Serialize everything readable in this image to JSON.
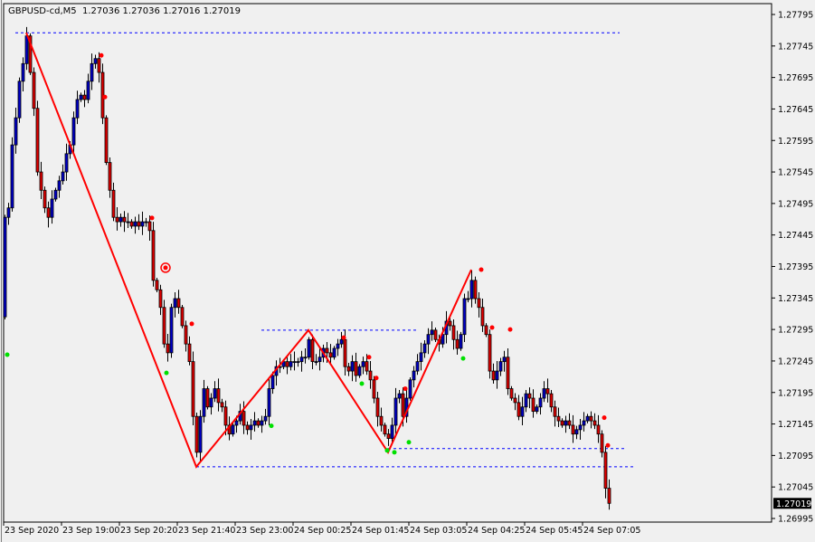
{
  "header": {
    "symbol": "GBPUSD-cd,M5",
    "ohlc": "1.27036 1.27036 1.27016 1.27019"
  },
  "colors": {
    "background": "#f0f0f0",
    "bull_body": "#0000c8",
    "bear_body": "#e00000",
    "wick": "#000000",
    "zigzag": "#ff0000",
    "level_line": "#0000ff",
    "signal_sell": "#ff0000",
    "signal_buy": "#00e000",
    "price_tag_bg": "#000000",
    "price_tag_fg": "#ffffff"
  },
  "chart_data": {
    "type": "candlestick",
    "symbol": "GBPUSD-cd",
    "timeframe": "M5",
    "ylim": [
      1.26995,
      1.27795
    ],
    "yticks": [
      "1.27795",
      "1.27745",
      "1.27695",
      "1.27645",
      "1.27595",
      "1.27545",
      "1.27495",
      "1.27445",
      "1.27395",
      "1.27345",
      "1.27295",
      "1.27245",
      "1.27195",
      "1.27145",
      "1.27095",
      "1.27045",
      "1.26995"
    ],
    "xticks": [
      {
        "bar": 0,
        "label": "23 Sep 2020"
      },
      {
        "bar": 16,
        "label": "23 Sep 19:00"
      },
      {
        "bar": 32,
        "label": "23 Sep 20:20"
      },
      {
        "bar": 48,
        "label": "23 Sep 21:40"
      },
      {
        "bar": 64,
        "label": "23 Sep 23:00"
      },
      {
        "bar": 80,
        "label": "24 Sep 00:25"
      },
      {
        "bar": 96,
        "label": "24 Sep 01:45"
      },
      {
        "bar": 112,
        "label": "24 Sep 03:05"
      },
      {
        "bar": 128,
        "label": "24 Sep 04:25"
      },
      {
        "bar": 144,
        "label": "24 Sep 05:45"
      },
      {
        "bar": 160,
        "label": "24 Sep 07:05"
      }
    ],
    "first_open": 1.27315,
    "closes": [
      1.27473,
      1.27488,
      1.27588,
      1.27631,
      1.27689,
      1.27717,
      1.27761,
      1.27703,
      1.27646,
      1.27545,
      1.27516,
      1.27488,
      1.27473,
      1.27502,
      1.27516,
      1.27531,
      1.27545,
      1.27574,
      1.27588,
      1.27631,
      1.2766,
      1.27667,
      1.2766,
      1.27689,
      1.27717,
      1.27725,
      1.27703,
      1.27631,
      1.2756,
      1.27516,
      1.27473,
      1.27466,
      1.27473,
      1.27466,
      1.27466,
      1.27459,
      1.27466,
      1.27459,
      1.27466,
      1.27466,
      1.27452,
      1.27373,
      1.27358,
      1.2733,
      1.27272,
      1.27258,
      1.2733,
      1.27344,
      1.2733,
      1.27301,
      1.27272,
      1.27244,
      1.27157,
      1.271,
      1.27157,
      1.27201,
      1.27172,
      1.27186,
      1.27201,
      1.27179,
      1.27172,
      1.27143,
      1.27129,
      1.27143,
      1.2715,
      1.27165,
      1.27143,
      1.27136,
      1.27143,
      1.2715,
      1.27143,
      1.2715,
      1.27157,
      1.27201,
      1.27222,
      1.27236,
      1.27236,
      1.27244,
      1.27236,
      1.27244,
      1.27244,
      1.27244,
      1.27251,
      1.27251,
      1.27279,
      1.27244,
      1.27244,
      1.27251,
      1.27265,
      1.27258,
      1.27251,
      1.27265,
      1.27272,
      1.27279,
      1.27236,
      1.27229,
      1.27244,
      1.27222,
      1.27236,
      1.27244,
      1.27229,
      1.27215,
      1.27186,
      1.27157,
      1.27143,
      1.27129,
      1.27122,
      1.27143,
      1.27186,
      1.27193,
      1.27157,
      1.27186,
      1.27215,
      1.27229,
      1.27244,
      1.27258,
      1.27272,
      1.27287,
      1.27294,
      1.27279,
      1.27272,
      1.27287,
      1.27308,
      1.27301,
      1.27279,
      1.27265,
      1.27287,
      1.27344,
      1.27344,
      1.27373,
      1.27344,
      1.2733,
      1.27301,
      1.27287,
      1.27229,
      1.27215,
      1.27229,
      1.27244,
      1.27251,
      1.27201,
      1.27186,
      1.27179,
      1.27157,
      1.27172,
      1.27193,
      1.27186,
      1.27165,
      1.27172,
      1.27186,
      1.27201,
      1.27193,
      1.27172,
      1.27157,
      1.2715,
      1.27143,
      1.2715,
      1.27143,
      1.27129,
      1.27136,
      1.27143,
      1.2715,
      1.27157,
      1.2715,
      1.27143,
      1.27129,
      1.271,
      1.27043,
      1.27019
    ],
    "zigzag": [
      {
        "bar": 6,
        "price": 1.27766
      },
      {
        "bar": 53,
        "price": 1.27077
      },
      {
        "bar": 84,
        "price": 1.27294
      },
      {
        "bar": 106,
        "price": 1.271
      },
      {
        "bar": 129,
        "price": 1.2739
      }
    ],
    "levels": [
      {
        "price": 1.27766,
        "from_bar": 3,
        "to_bar": 170
      },
      {
        "price": 1.27077,
        "from_bar": 53,
        "to_bar": 174
      },
      {
        "price": 1.27294,
        "from_bar": 71,
        "to_bar": 114
      },
      {
        "price": 1.27106,
        "from_bar": 106,
        "to_bar": 172
      }
    ],
    "sell_signals": [
      {
        "bar": 26,
        "price": 1.2773
      },
      {
        "bar": 27,
        "price": 1.27664
      },
      {
        "bar": 40,
        "price": 1.27472
      },
      {
        "bar": 51,
        "price": 1.27304
      },
      {
        "bar": 93,
        "price": 1.27282
      },
      {
        "bar": 100,
        "price": 1.27251
      },
      {
        "bar": 102,
        "price": 1.27218
      },
      {
        "bar": 110,
        "price": 1.27201
      },
      {
        "bar": 131,
        "price": 1.2739
      },
      {
        "bar": 134,
        "price": 1.27298
      },
      {
        "bar": 139,
        "price": 1.27295
      },
      {
        "bar": 165,
        "price": 1.27155
      },
      {
        "bar": 166,
        "price": 1.27111
      }
    ],
    "buy_signals": [
      {
        "bar": 0,
        "price": 1.27255
      },
      {
        "bar": 44,
        "price": 1.27226
      },
      {
        "bar": 73,
        "price": 1.27142
      },
      {
        "bar": 98,
        "price": 1.27209
      },
      {
        "bar": 105,
        "price": 1.27103
      },
      {
        "bar": 107,
        "price": 1.271
      },
      {
        "bar": 111,
        "price": 1.27116
      },
      {
        "bar": 126,
        "price": 1.27249
      }
    ],
    "target_marker": {
      "bar": 43,
      "price": 1.27393
    },
    "current_price": "1.27019"
  }
}
